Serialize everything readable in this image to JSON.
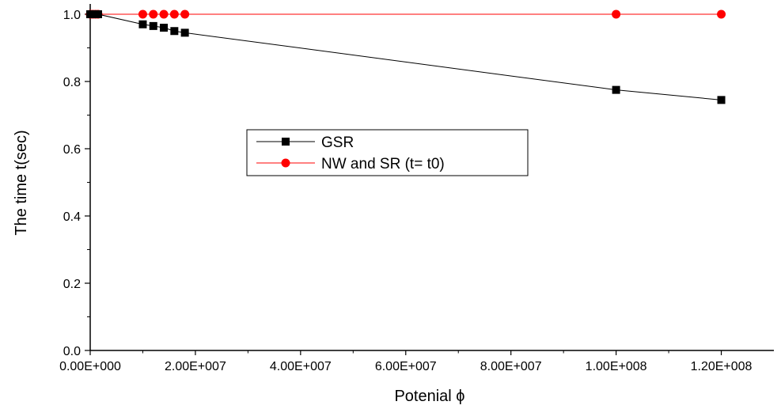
{
  "chart_data": {
    "type": "line",
    "xlabel": "Potenial ϕ",
    "ylabel": "The time  t(sec)",
    "xlim": [
      0,
      130000000
    ],
    "ylim": [
      0,
      1.0
    ],
    "x_ticks": [
      0,
      20000000,
      40000000,
      60000000,
      80000000,
      100000000,
      120000000
    ],
    "x_tick_labels": [
      "0.00E+000",
      "2.00E+007",
      "4.00E+007",
      "6.00E+007",
      "8.00E+007",
      "1.00E+008",
      "1.20E+008"
    ],
    "y_ticks": [
      0,
      0.2,
      0.4,
      0.6,
      0.8,
      1.0
    ],
    "y_tick_labels": [
      "0.0",
      "0.2",
      "0.4",
      "0.6",
      "0.8",
      "1.0"
    ],
    "grid": false,
    "legend_position": "center",
    "series": [
      {
        "name": "GSR",
        "color": "#000000",
        "marker": "square",
        "x": [
          0,
          500000,
          1000000,
          1500000,
          10000000,
          12000000,
          14000000,
          16000000,
          18000000,
          100000000,
          120000000
        ],
        "y": [
          1.0,
          1.0,
          1.0,
          1.0,
          0.97,
          0.965,
          0.96,
          0.95,
          0.945,
          0.775,
          0.745
        ]
      },
      {
        "name": "NW and SR (t= t0)",
        "color": "#ff0000",
        "marker": "circle",
        "x": [
          0,
          500000,
          1000000,
          1500000,
          10000000,
          12000000,
          14000000,
          16000000,
          18000000,
          100000000,
          120000000
        ],
        "y": [
          1.0,
          1.0,
          1.0,
          1.0,
          1.0,
          1.0,
          1.0,
          1.0,
          1.0,
          1.0,
          1.0
        ]
      }
    ]
  }
}
